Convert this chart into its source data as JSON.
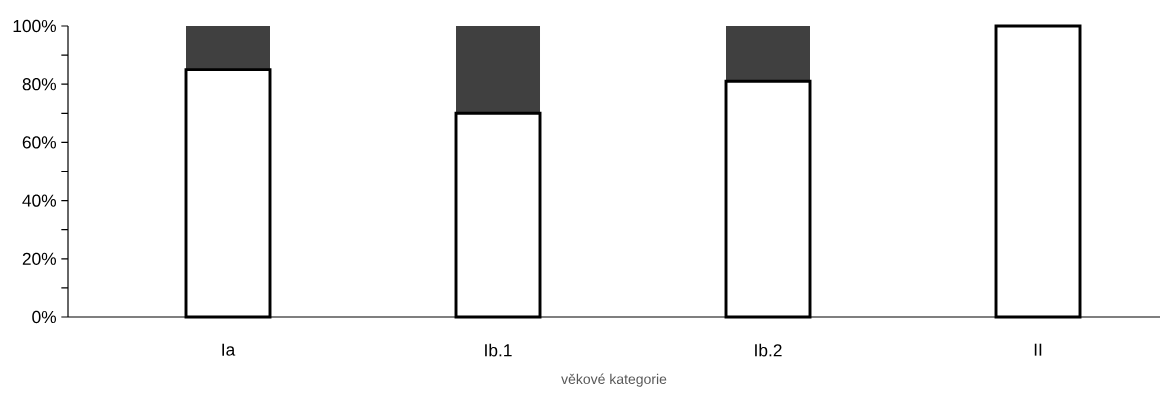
{
  "chart_data": {
    "type": "bar",
    "stacked": true,
    "xlabel": "věkové kategorie",
    "categories": [
      "Ia",
      "Ib.1",
      "Ib.2",
      "II"
    ],
    "series": [
      {
        "color": "#ffffff",
        "values": [
          85,
          70,
          81,
          100
        ]
      },
      {
        "color": "#404040",
        "values": [
          15,
          30,
          19,
          0
        ]
      }
    ],
    "ylim": [
      0,
      100
    ],
    "yticks": [
      {
        "value": 0,
        "label": "0%"
      },
      {
        "value": 10,
        "label": null
      },
      {
        "value": 20,
        "label": "20%"
      },
      {
        "value": 30,
        "label": null
      },
      {
        "value": 40,
        "label": "40%"
      },
      {
        "value": 50,
        "label": null
      },
      {
        "value": 60,
        "label": "60%"
      },
      {
        "value": 70,
        "label": null
      },
      {
        "value": 80,
        "label": "80%"
      },
      {
        "value": 90,
        "label": null
      },
      {
        "value": 100,
        "label": "100%"
      }
    ],
    "grid": false
  }
}
